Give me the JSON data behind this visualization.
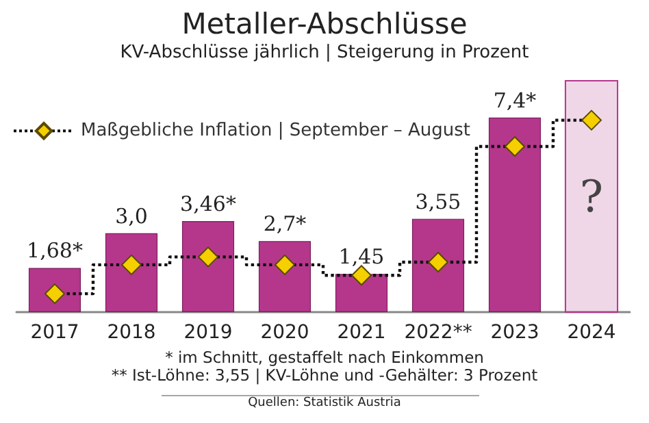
{
  "chart_data": {
    "type": "bar",
    "title": "Metaller-Abschlüsse",
    "subtitle": "KV-Abschlüsse jährlich | Steigerung in Prozent",
    "categories": [
      "2017",
      "2018",
      "2019",
      "2020",
      "2021",
      "2022**",
      "2023",
      "2024"
    ],
    "series": [
      {
        "color": "#b5378c",
        "values": [
          1.68,
          3.0,
          3.46,
          2.7,
          1.45,
          3.55,
          7.4,
          null
        ],
        "value_labels": [
          "1,68*",
          "3,0",
          "3,46*",
          "2,7*",
          "1,45",
          "3,55",
          "7,4*",
          null
        ]
      },
      {
        "type": "step",
        "name": "Maßgebliche Inflation | September – August",
        "color": "#f5cf00",
        "values": [
          0.7,
          1.8,
          2.1,
          1.8,
          1.4,
          1.9,
          6.3,
          7.3
        ],
        "marker": "diamond",
        "line_style": "dotted"
      }
    ],
    "bands": [
      {
        "axis": "x",
        "from": "2024",
        "to": "2024",
        "label": "?",
        "color": "#b5378c"
      }
    ],
    "ylim": [
      0,
      8.8
    ],
    "tick_labels": "x",
    "grid": false,
    "legend": "top left",
    "annotations": [
      "* im Schnitt, gestaffelt nach Einkommen",
      "** Ist-Löhne: 3,55 | KV-Löhne und -Gehälter: 3 Prozent",
      "Quellen: Statistik Austria"
    ]
  }
}
